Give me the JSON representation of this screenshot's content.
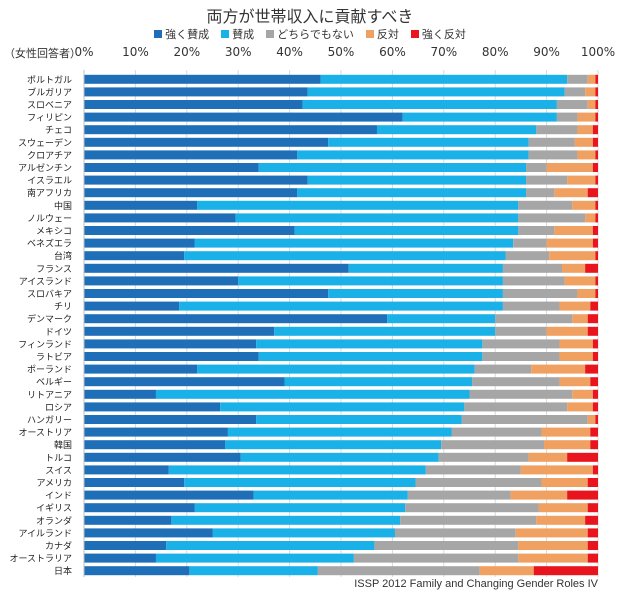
{
  "chart_data": {
    "type": "bar",
    "orientation": "horizontal",
    "stacked": "percent",
    "title": "両方が世帯収入に貢献すべき",
    "subject_note": "（女性回答者）",
    "source": "ISSP 2012 Family and Changing Gender Roles IV",
    "xlim": [
      0,
      100
    ],
    "x_ticks": [
      "0%",
      "10%",
      "20%",
      "30%",
      "40%",
      "50%",
      "60%",
      "70%",
      "80%",
      "90%",
      "100%"
    ],
    "grid": true,
    "legend_position": "top",
    "categories": [
      "ポルトガル",
      "ブルガリア",
      "スロベニア",
      "フィリピン",
      "チェコ",
      "スウェーデン",
      "クロアチア",
      "アルゼンチン",
      "イスラエル",
      "南アフリカ",
      "中国",
      "ノルウェー",
      "メキシコ",
      "ベネズエラ",
      "台湾",
      "フランス",
      "アイスランド",
      "スロバキア",
      "チリ",
      "デンマーク",
      "ドイツ",
      "フィンランド",
      "ラトビア",
      "ポーランド",
      "ベルギー",
      "リトアニア",
      "ロシア",
      "ハンガリー",
      "オーストリア",
      "韓国",
      "トルコ",
      "スイス",
      "アメリカ",
      "インド",
      "イギリス",
      "オランダ",
      "アイルランド",
      "カナダ",
      "オーストラリア",
      "日本"
    ],
    "series": [
      {
        "name": "強く賛成",
        "color": "#1e6fb8",
        "values": [
          46,
          43.5,
          42.5,
          62,
          57,
          47.5,
          41.5,
          34,
          43.5,
          41.5,
          22,
          29.5,
          41,
          21.5,
          19.5,
          51.5,
          30,
          47.5,
          18.5,
          59,
          37,
          33.5,
          34,
          22,
          39,
          14,
          26.5,
          33.5,
          28,
          27.5,
          30.5,
          16.5,
          19.5,
          33,
          21.5,
          17,
          25,
          16,
          14,
          20.5
        ]
      },
      {
        "name": "賛成",
        "color": "#1ab0e8",
        "values": [
          48,
          50,
          49.5,
          30,
          31,
          39,
          45,
          52,
          42.5,
          44.5,
          62.5,
          55,
          43.5,
          62,
          62.5,
          30,
          51.5,
          34,
          63,
          21,
          43,
          44,
          43.5,
          54,
          36.5,
          61,
          47.5,
          40,
          43.5,
          42,
          38.5,
          50,
          45,
          30,
          41,
          44.5,
          35.5,
          40.5,
          38.5,
          25
        ]
      },
      {
        "name": "どちらでもない",
        "color": "#a6a6a6",
        "values": [
          4,
          4,
          6,
          4,
          8,
          9,
          9.5,
          4,
          8,
          5.5,
          10.5,
          13,
          7,
          6.5,
          8.5,
          11.5,
          12,
          14.5,
          11,
          15,
          10,
          15,
          15,
          11,
          17,
          20,
          20,
          24.5,
          17.5,
          20,
          17.5,
          18.5,
          24.5,
          20,
          26,
          26.5,
          23.5,
          28,
          32,
          31.5
        ]
      },
      {
        "name": "反対",
        "color": "#f0a060",
        "values": [
          1.5,
          2,
          1.5,
          3.5,
          3,
          3.5,
          3.5,
          9,
          5.5,
          6.5,
          4.5,
          2,
          7.5,
          9,
          9,
          4.5,
          6,
          3.5,
          6,
          3,
          8,
          6.5,
          6.5,
          10.5,
          6,
          4,
          5,
          1.5,
          9.5,
          9,
          7.5,
          14,
          9,
          11,
          9.5,
          9.5,
          14,
          13.5,
          13.5,
          10.5
        ]
      },
      {
        "name": "強く反対",
        "color": "#e8141e",
        "values": [
          0.5,
          0.5,
          0.5,
          0.5,
          1,
          1,
          0.5,
          1,
          0.5,
          2,
          0.5,
          0.5,
          1,
          1,
          0.5,
          2.5,
          0.5,
          0.5,
          1.5,
          2,
          2,
          1,
          1,
          2.5,
          1.5,
          1,
          1,
          0.5,
          1.5,
          1.5,
          6,
          1,
          2,
          6,
          2,
          2.5,
          2,
          2,
          2,
          12.5
        ]
      }
    ]
  }
}
